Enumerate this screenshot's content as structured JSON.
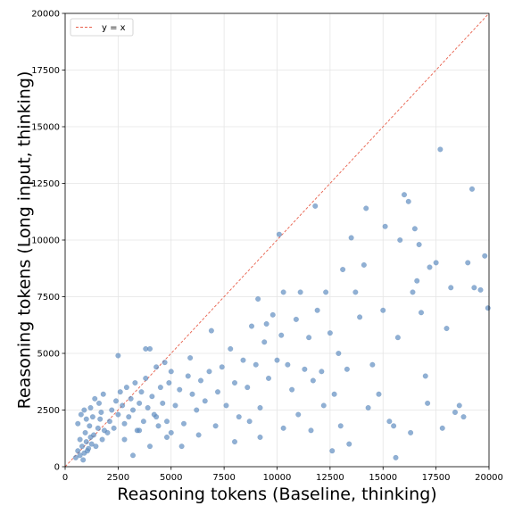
{
  "chart_data": {
    "type": "scatter",
    "xlabel": "Reasoning tokens (Baseline, thinking)",
    "ylabel": "Reasoning tokens (Long input, thinking)",
    "xlim": [
      0,
      20000
    ],
    "ylim": [
      0,
      20000
    ],
    "xticks": [
      "0",
      "2500",
      "5000",
      "7500",
      "10000",
      "12500",
      "15000",
      "17500",
      "20000"
    ],
    "yticks": [
      "0",
      "2500",
      "5000",
      "7500",
      "10000",
      "12500",
      "15000",
      "17500",
      "20000"
    ],
    "grid": true,
    "legend_position": "top-left",
    "reference_line": {
      "label": "y = x",
      "color": "#e8604c"
    },
    "point_color": "#5b8bbf",
    "series": [
      {
        "points": [
          [
            500,
            400
          ],
          [
            600,
            700
          ],
          [
            700,
            500
          ],
          [
            800,
            900
          ],
          [
            900,
            600
          ],
          [
            1000,
            1100
          ],
          [
            1100,
            800
          ],
          [
            1200,
            1300
          ],
          [
            700,
            1200
          ],
          [
            850,
            300
          ],
          [
            950,
            1500
          ],
          [
            1050,
            700
          ],
          [
            1150,
            1800
          ],
          [
            1250,
            1000
          ],
          [
            1350,
            1400
          ],
          [
            1450,
            900
          ],
          [
            1550,
            1700
          ],
          [
            1650,
            2100
          ],
          [
            1750,
            1200
          ],
          [
            1850,
            1600
          ],
          [
            600,
            1900
          ],
          [
            750,
            2300
          ],
          [
            900,
            2500
          ],
          [
            1000,
            2100
          ],
          [
            1200,
            2600
          ],
          [
            1300,
            2200
          ],
          [
            1400,
            3000
          ],
          [
            1600,
            2800
          ],
          [
            1700,
            2400
          ],
          [
            1800,
            3200
          ],
          [
            2000,
            1500
          ],
          [
            2100,
            2000
          ],
          [
            2200,
            2500
          ],
          [
            2300,
            1700
          ],
          [
            2400,
            2900
          ],
          [
            2500,
            2300
          ],
          [
            2600,
            3300
          ],
          [
            2700,
            2700
          ],
          [
            2800,
            1900
          ],
          [
            2900,
            3500
          ],
          [
            3000,
            2200
          ],
          [
            3100,
            3000
          ],
          [
            3200,
            2500
          ],
          [
            3300,
            3700
          ],
          [
            3400,
            1600
          ],
          [
            3500,
            2800
          ],
          [
            3600,
            3300
          ],
          [
            3700,
            2000
          ],
          [
            3800,
            3900
          ],
          [
            3900,
            2600
          ],
          [
            4000,
            5200
          ],
          [
            4100,
            3100
          ],
          [
            4200,
            2300
          ],
          [
            4300,
            4400
          ],
          [
            4400,
            1800
          ],
          [
            4500,
            3500
          ],
          [
            4600,
            2800
          ],
          [
            4700,
            4600
          ],
          [
            4800,
            2000
          ],
          [
            4900,
            3700
          ],
          [
            5000,
            4200
          ],
          [
            5200,
            2700
          ],
          [
            5400,
            3400
          ],
          [
            5600,
            1900
          ],
          [
            5800,
            4000
          ],
          [
            6000,
            3200
          ],
          [
            6200,
            2500
          ],
          [
            6400,
            3800
          ],
          [
            6600,
            2900
          ],
          [
            6800,
            4200
          ],
          [
            2500,
            4900
          ],
          [
            3800,
            5200
          ],
          [
            5900,
            4800
          ],
          [
            6900,
            6000
          ],
          [
            7200,
            3300
          ],
          [
            7400,
            4400
          ],
          [
            7600,
            2700
          ],
          [
            7800,
            5200
          ],
          [
            8000,
            3700
          ],
          [
            8200,
            2200
          ],
          [
            8400,
            4700
          ],
          [
            8600,
            3500
          ],
          [
            8800,
            6200
          ],
          [
            9000,
            4500
          ],
          [
            9200,
            2600
          ],
          [
            9400,
            5500
          ],
          [
            9600,
            3900
          ],
          [
            9800,
            6700
          ],
          [
            10000,
            4700
          ],
          [
            10200,
            5800
          ],
          [
            9100,
            7400
          ],
          [
            9500,
            6300
          ],
          [
            10100,
            10250
          ],
          [
            10300,
            7700
          ],
          [
            10500,
            4500
          ],
          [
            10700,
            3400
          ],
          [
            10900,
            6500
          ],
          [
            11100,
            7700
          ],
          [
            11300,
            4300
          ],
          [
            11500,
            5700
          ],
          [
            11700,
            3800
          ],
          [
            11900,
            6900
          ],
          [
            12100,
            4200
          ],
          [
            12300,
            7700
          ],
          [
            12500,
            5900
          ],
          [
            12700,
            3200
          ],
          [
            12900,
            5000
          ],
          [
            13100,
            8700
          ],
          [
            13300,
            4300
          ],
          [
            13500,
            10100
          ],
          [
            11800,
            11500
          ],
          [
            13700,
            7700
          ],
          [
            13900,
            6600
          ],
          [
            14100,
            8900
          ],
          [
            14200,
            11400
          ],
          [
            14500,
            4500
          ],
          [
            14800,
            3200
          ],
          [
            15000,
            6900
          ],
          [
            15100,
            10600
          ],
          [
            15300,
            2000
          ],
          [
            15500,
            1800
          ],
          [
            15700,
            5700
          ],
          [
            15800,
            10000
          ],
          [
            16000,
            12000
          ],
          [
            16200,
            11700
          ],
          [
            16400,
            7700
          ],
          [
            16500,
            10500
          ],
          [
            16600,
            8200
          ],
          [
            16700,
            9800
          ],
          [
            16800,
            6800
          ],
          [
            17000,
            4000
          ],
          [
            17200,
            8800
          ],
          [
            17500,
            9000
          ],
          [
            17700,
            14000
          ],
          [
            17800,
            1700
          ],
          [
            18000,
            6100
          ],
          [
            18200,
            7900
          ],
          [
            18400,
            2400
          ],
          [
            18600,
            2700
          ],
          [
            18800,
            2200
          ],
          [
            19000,
            9000
          ],
          [
            19200,
            12250
          ],
          [
            19300,
            7900
          ],
          [
            19600,
            7800
          ],
          [
            19800,
            9300
          ],
          [
            19950,
            7000
          ],
          [
            15600,
            400
          ],
          [
            12600,
            700
          ],
          [
            13000,
            1800
          ],
          [
            14300,
            2600
          ],
          [
            3200,
            500
          ],
          [
            4000,
            900
          ],
          [
            4800,
            1300
          ],
          [
            5500,
            900
          ],
          [
            6300,
            1400
          ],
          [
            7100,
            1800
          ],
          [
            8000,
            1100
          ],
          [
            8700,
            2000
          ],
          [
            9200,
            1300
          ],
          [
            10300,
            1700
          ],
          [
            11000,
            2300
          ],
          [
            11600,
            1600
          ],
          [
            12200,
            2700
          ],
          [
            13400,
            1000
          ],
          [
            16300,
            1500
          ],
          [
            17100,
            2800
          ],
          [
            2800,
            1200
          ],
          [
            3500,
            1600
          ],
          [
            4300,
            2200
          ],
          [
            5000,
            1500
          ]
        ]
      }
    ]
  }
}
